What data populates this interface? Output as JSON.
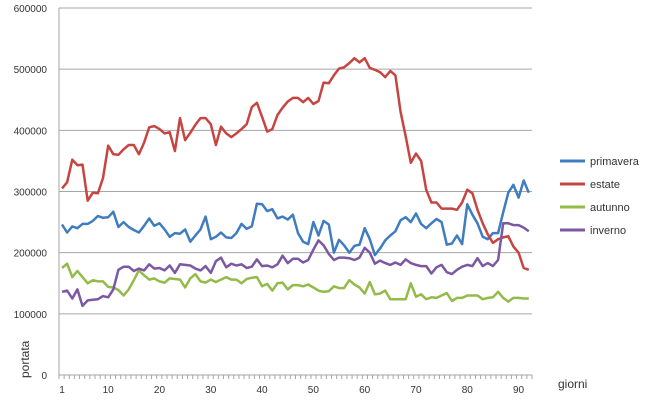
{
  "chart_data": {
    "type": "line",
    "title": "",
    "xlabel": "giorni",
    "ylabel": "portata",
    "ylim": [
      0,
      600000
    ],
    "yticks": [
      "0",
      "100000",
      "200000",
      "300000",
      "400000",
      "500000",
      "600000"
    ],
    "xticks": [
      "1",
      "10",
      "20",
      "30",
      "40",
      "50",
      "60",
      "70",
      "80",
      "90"
    ],
    "xtick_days": [
      1,
      10,
      20,
      30,
      40,
      50,
      60,
      70,
      80,
      90
    ],
    "grid": "horizontal",
    "legend_position": "right",
    "x_count": 92,
    "series": [
      {
        "name": "primavera",
        "color": "#3f7cc0",
        "values": [
          246,
          233,
          243,
          240,
          247,
          247,
          252,
          260,
          257,
          258,
          267,
          242,
          250,
          242,
          237,
          233,
          244,
          256,
          244,
          248,
          238,
          226,
          232,
          231,
          238,
          218,
          228,
          238,
          259,
          222,
          226,
          233,
          225,
          224,
          232,
          247,
          239,
          243,
          280,
          279,
          268,
          271,
          256,
          259,
          254,
          262,
          232,
          218,
          214,
          250,
          228,
          252,
          246,
          200,
          221,
          212,
          200,
          211,
          213,
          240,
          222,
          196,
          207,
          220,
          228,
          235,
          253,
          258,
          250,
          264,
          247,
          240,
          248,
          255,
          250,
          213,
          215,
          228,
          214,
          279,
          262,
          248,
          226,
          222,
          232,
          232,
          266,
          298,
          311,
          290,
          318,
          298
        ]
      },
      {
        "name": "estate",
        "color": "#c64541",
        "values": [
          305,
          315,
          352,
          343,
          344,
          285,
          298,
          297,
          322,
          375,
          361,
          360,
          369,
          376,
          376,
          361,
          380,
          405,
          407,
          402,
          395,
          397,
          366,
          420,
          384,
          396,
          409,
          420,
          420,
          410,
          376,
          406,
          395,
          389,
          395,
          402,
          410,
          438,
          445,
          422,
          398,
          402,
          425,
          437,
          447,
          453,
          453,
          446,
          453,
          443,
          448,
          478,
          477,
          490,
          501,
          503,
          510,
          518,
          511,
          518,
          502,
          499,
          495,
          487,
          497,
          490,
          430,
          390,
          347,
          362,
          350,
          303,
          282,
          282,
          272,
          272,
          272,
          270,
          282,
          303,
          297,
          270,
          248,
          230,
          216,
          222,
          225,
          227,
          210,
          200,
          175,
          172
        ]
      },
      {
        "name": "autunno",
        "color": "#93bb4a",
        "values": [
          175,
          182,
          160,
          170,
          160,
          150,
          155,
          153,
          153,
          144,
          143,
          139,
          130,
          140,
          155,
          171,
          163,
          156,
          158,
          153,
          151,
          158,
          157,
          156,
          143,
          158,
          165,
          153,
          151,
          156,
          152,
          156,
          160,
          156,
          156,
          150,
          157,
          159,
          160,
          145,
          149,
          138,
          150,
          151,
          140,
          147,
          147,
          145,
          148,
          143,
          138,
          136,
          137,
          145,
          142,
          142,
          155,
          148,
          143,
          133,
          152,
          132,
          133,
          138,
          124,
          124,
          124,
          124,
          150,
          128,
          132,
          124,
          127,
          126,
          130,
          134,
          121,
          126,
          126,
          130,
          130,
          130,
          124,
          126,
          127,
          136,
          126,
          120,
          126,
          126,
          125,
          125
        ]
      },
      {
        "name": "inverno",
        "color": "#7c58a2",
        "values": [
          136,
          138,
          125,
          140,
          113,
          122,
          123,
          124,
          129,
          127,
          140,
          172,
          177,
          177,
          170,
          174,
          171,
          181,
          174,
          175,
          171,
          179,
          167,
          181,
          180,
          179,
          174,
          171,
          178,
          167,
          186,
          192,
          176,
          182,
          179,
          181,
          175,
          177,
          189,
          178,
          179,
          176,
          181,
          195,
          183,
          190,
          190,
          184,
          188,
          205,
          220,
          212,
          198,
          188,
          192,
          192,
          191,
          188,
          192,
          208,
          200,
          182,
          187,
          183,
          180,
          184,
          180,
          189,
          183,
          180,
          178,
          178,
          166,
          176,
          180,
          168,
          165,
          172,
          177,
          180,
          178,
          191,
          178,
          183,
          178,
          188,
          248,
          248,
          245,
          245,
          241,
          235
        ]
      }
    ],
    "value_unit_multiplier": 1000
  }
}
